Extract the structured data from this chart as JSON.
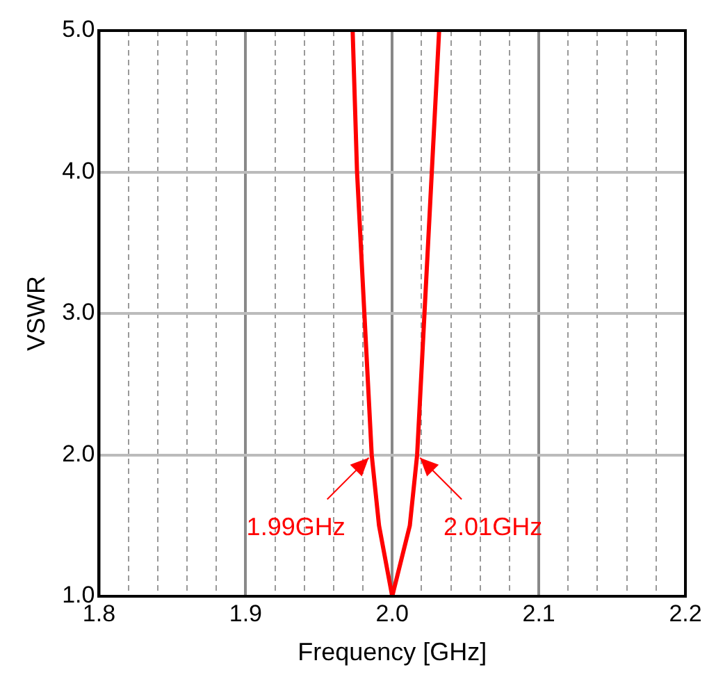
{
  "chart_data": {
    "type": "line",
    "xlabel": "Frequency [GHz]",
    "ylabel": "VSWR",
    "series": [
      {
        "color": "#ff0000",
        "x": [
          1.973,
          1.976,
          1.981,
          1.986,
          1.991,
          2.0,
          2.012,
          2.017,
          2.022,
          2.027,
          2.032
        ],
        "values": [
          5.0,
          4.0,
          3.0,
          2.0,
          1.5,
          1.0,
          1.5,
          2.0,
          3.0,
          4.0,
          5.0
        ]
      }
    ],
    "xlim": [
      1.8,
      2.2
    ],
    "ylim": [
      1.0,
      5.0
    ],
    "xticks": [
      1.8,
      {
        "value": 1.82,
        "label": null
      },
      {
        "value": 1.84,
        "label": null
      },
      {
        "value": 1.86,
        "label": null
      },
      {
        "value": 1.88,
        "label": null
      },
      1.9,
      {
        "value": 1.92,
        "label": null
      },
      {
        "value": 1.94,
        "label": null
      },
      {
        "value": 1.96,
        "label": null
      },
      {
        "value": 1.98,
        "label": null
      },
      {
        "value": 2,
        "label": "2.0"
      },
      {
        "value": 2.02,
        "label": null
      },
      {
        "value": 2.04,
        "label": null
      },
      {
        "value": 2.06,
        "label": null
      },
      {
        "value": 2.08,
        "label": null
      },
      2.1,
      {
        "value": 2.12,
        "label": null
      },
      {
        "value": 2.14,
        "label": null
      },
      {
        "value": 2.16,
        "label": null
      },
      {
        "value": 2.18,
        "label": null
      },
      2.2
    ],
    "yticks": [
      {
        "value": 1,
        "label": "1.0"
      },
      {
        "value": 2,
        "label": "2.0"
      },
      {
        "value": 3,
        "label": "3.0"
      },
      {
        "value": 4,
        "label": "4.0"
      },
      {
        "value": 5,
        "label": "5.0"
      }
    ],
    "grid": true,
    "legend": false,
    "marker": "none",
    "line_style": "solid",
    "annotations": [
      {
        "text": "1.99GHz",
        "x": 1.986,
        "y": 2.0
      },
      {
        "text": "2.01GHz",
        "x": 2.017,
        "y": 2.0
      }
    ]
  }
}
